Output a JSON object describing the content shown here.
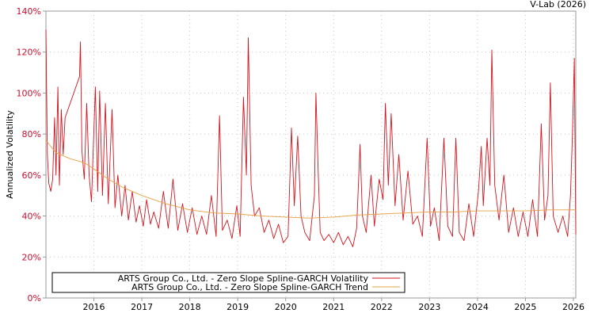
{
  "credit": "V-Lab (2026)",
  "colors": {
    "volatility": "#d2141e",
    "trend": "#e6a040",
    "axis_text_y": "#c8102e",
    "grid": "#c8c8c8"
  },
  "chart_data": {
    "type": "line",
    "title": "",
    "xlabel": "",
    "ylabel": "Annualized Volatility",
    "xlim": [
      2015.0,
      2026.05
    ],
    "ylim": [
      0,
      140
    ],
    "yticks": [
      {
        "value": 0,
        "label": "0%"
      },
      {
        "value": 20,
        "label": "20%"
      },
      {
        "value": 40,
        "label": "40%"
      },
      {
        "value": 60,
        "label": "60%"
      },
      {
        "value": 80,
        "label": "80%"
      },
      {
        "value": 100,
        "label": "100%"
      },
      {
        "value": 120,
        "label": "120%"
      },
      {
        "value": 140,
        "label": "140%"
      }
    ],
    "xticks": [
      {
        "value": 2016,
        "label": "2016"
      },
      {
        "value": 2017,
        "label": "2017"
      },
      {
        "value": 2018,
        "label": "2018"
      },
      {
        "value": 2019,
        "label": "2019"
      },
      {
        "value": 2020,
        "label": "2020"
      },
      {
        "value": 2021,
        "label": "2021"
      },
      {
        "value": 2022,
        "label": "2022"
      },
      {
        "value": 2023,
        "label": "2023"
      },
      {
        "value": 2024,
        "label": "2024"
      },
      {
        "value": 2025,
        "label": "2025"
      },
      {
        "value": 2026,
        "label": "2026"
      }
    ],
    "grid": true,
    "legend_position": "bottom-left",
    "series": [
      {
        "name": "ARTS Group Co., Ltd. - Zero Slope Spline-GARCH Volatility",
        "style": "volatility",
        "points": [
          [
            2015.0,
            131
          ],
          [
            2015.03,
            70
          ],
          [
            2015.06,
            56
          ],
          [
            2015.1,
            52
          ],
          [
            2015.14,
            58
          ],
          [
            2015.18,
            88
          ],
          [
            2015.21,
            60
          ],
          [
            2015.25,
            103
          ],
          [
            2015.28,
            55
          ],
          [
            2015.32,
            92
          ],
          [
            2015.36,
            70
          ],
          [
            2015.4,
            88
          ],
          [
            2015.7,
            108
          ],
          [
            2015.72,
            125
          ],
          [
            2015.75,
            72
          ],
          [
            2015.8,
            58
          ],
          [
            2015.85,
            95
          ],
          [
            2015.9,
            60
          ],
          [
            2015.95,
            47
          ],
          [
            2016.03,
            103
          ],
          [
            2016.08,
            52
          ],
          [
            2016.12,
            101
          ],
          [
            2016.18,
            50
          ],
          [
            2016.24,
            95
          ],
          [
            2016.3,
            46
          ],
          [
            2016.38,
            92
          ],
          [
            2016.44,
            44
          ],
          [
            2016.5,
            60
          ],
          [
            2016.58,
            40
          ],
          [
            2016.65,
            55
          ],
          [
            2016.72,
            38
          ],
          [
            2016.8,
            52
          ],
          [
            2016.88,
            37
          ],
          [
            2016.95,
            45
          ],
          [
            2017.03,
            35
          ],
          [
            2017.1,
            48
          ],
          [
            2017.18,
            36
          ],
          [
            2017.25,
            42
          ],
          [
            2017.35,
            34
          ],
          [
            2017.45,
            52
          ],
          [
            2017.55,
            34
          ],
          [
            2017.65,
            58
          ],
          [
            2017.75,
            33
          ],
          [
            2017.85,
            46
          ],
          [
            2017.95,
            32
          ],
          [
            2018.05,
            44
          ],
          [
            2018.15,
            31
          ],
          [
            2018.25,
            40
          ],
          [
            2018.35,
            31
          ],
          [
            2018.45,
            50
          ],
          [
            2018.55,
            30
          ],
          [
            2018.62,
            89
          ],
          [
            2018.68,
            33
          ],
          [
            2018.78,
            38
          ],
          [
            2018.88,
            29
          ],
          [
            2018.98,
            45
          ],
          [
            2019.05,
            30
          ],
          [
            2019.12,
            98
          ],
          [
            2019.18,
            60
          ],
          [
            2019.22,
            127
          ],
          [
            2019.28,
            55
          ],
          [
            2019.35,
            40
          ],
          [
            2019.45,
            44
          ],
          [
            2019.55,
            32
          ],
          [
            2019.65,
            38
          ],
          [
            2019.75,
            29
          ],
          [
            2019.85,
            36
          ],
          [
            2019.95,
            27
          ],
          [
            2020.05,
            30
          ],
          [
            2020.12,
            83
          ],
          [
            2020.18,
            45
          ],
          [
            2020.25,
            79
          ],
          [
            2020.32,
            40
          ],
          [
            2020.4,
            32
          ],
          [
            2020.5,
            28
          ],
          [
            2020.6,
            50
          ],
          [
            2020.63,
            100
          ],
          [
            2020.68,
            60
          ],
          [
            2020.72,
            32
          ],
          [
            2020.8,
            28
          ],
          [
            2020.9,
            31
          ],
          [
            2021.0,
            27
          ],
          [
            2021.1,
            32
          ],
          [
            2021.2,
            26
          ],
          [
            2021.3,
            30
          ],
          [
            2021.4,
            25
          ],
          [
            2021.48,
            34
          ],
          [
            2021.55,
            75
          ],
          [
            2021.6,
            40
          ],
          [
            2021.68,
            32
          ],
          [
            2021.78,
            60
          ],
          [
            2021.85,
            35
          ],
          [
            2021.95,
            58
          ],
          [
            2022.03,
            48
          ],
          [
            2022.08,
            95
          ],
          [
            2022.14,
            55
          ],
          [
            2022.2,
            90
          ],
          [
            2022.28,
            45
          ],
          [
            2022.36,
            70
          ],
          [
            2022.45,
            38
          ],
          [
            2022.55,
            62
          ],
          [
            2022.65,
            36
          ],
          [
            2022.75,
            40
          ],
          [
            2022.85,
            30
          ],
          [
            2022.95,
            78
          ],
          [
            2023.02,
            35
          ],
          [
            2023.1,
            44
          ],
          [
            2023.2,
            28
          ],
          [
            2023.3,
            78
          ],
          [
            2023.38,
            35
          ],
          [
            2023.48,
            30
          ],
          [
            2023.55,
            78
          ],
          [
            2023.62,
            32
          ],
          [
            2023.72,
            28
          ],
          [
            2023.82,
            46
          ],
          [
            2023.92,
            30
          ],
          [
            2024.02,
            52
          ],
          [
            2024.08,
            74
          ],
          [
            2024.12,
            45
          ],
          [
            2024.2,
            78
          ],
          [
            2024.26,
            55
          ],
          [
            2024.3,
            121
          ],
          [
            2024.36,
            55
          ],
          [
            2024.45,
            38
          ],
          [
            2024.55,
            60
          ],
          [
            2024.65,
            32
          ],
          [
            2024.75,
            44
          ],
          [
            2024.85,
            30
          ],
          [
            2024.95,
            42
          ],
          [
            2025.05,
            30
          ],
          [
            2025.15,
            48
          ],
          [
            2025.25,
            30
          ],
          [
            2025.33,
            85
          ],
          [
            2025.4,
            38
          ],
          [
            2025.47,
            50
          ],
          [
            2025.52,
            105
          ],
          [
            2025.58,
            40
          ],
          [
            2025.68,
            32
          ],
          [
            2025.78,
            40
          ],
          [
            2025.88,
            30
          ],
          [
            2025.94,
            50
          ],
          [
            2025.98,
            80
          ],
          [
            2026.02,
            117
          ],
          [
            2026.05,
            31
          ]
        ]
      },
      {
        "name": "ARTS Group Co., Ltd. - Zero Slope Spline-GARCH Trend",
        "style": "trend",
        "points": [
          [
            2015.0,
            77
          ],
          [
            2015.2,
            71
          ],
          [
            2015.5,
            68
          ],
          [
            2015.8,
            66
          ],
          [
            2016.0,
            63
          ],
          [
            2016.3,
            58
          ],
          [
            2016.6,
            54
          ],
          [
            2017.0,
            50
          ],
          [
            2017.5,
            46
          ],
          [
            2018.0,
            43
          ],
          [
            2018.5,
            41.5
          ],
          [
            2019.0,
            41
          ],
          [
            2019.5,
            40
          ],
          [
            2020.0,
            39.5
          ],
          [
            2020.5,
            39
          ],
          [
            2021.0,
            39.5
          ],
          [
            2021.5,
            40.5
          ],
          [
            2022.0,
            41
          ],
          [
            2022.5,
            41.5
          ],
          [
            2023.0,
            42
          ],
          [
            2023.5,
            42
          ],
          [
            2024.0,
            42.5
          ],
          [
            2024.5,
            42.5
          ],
          [
            2025.0,
            42.5
          ],
          [
            2025.5,
            43
          ],
          [
            2026.05,
            43
          ]
        ]
      }
    ]
  }
}
